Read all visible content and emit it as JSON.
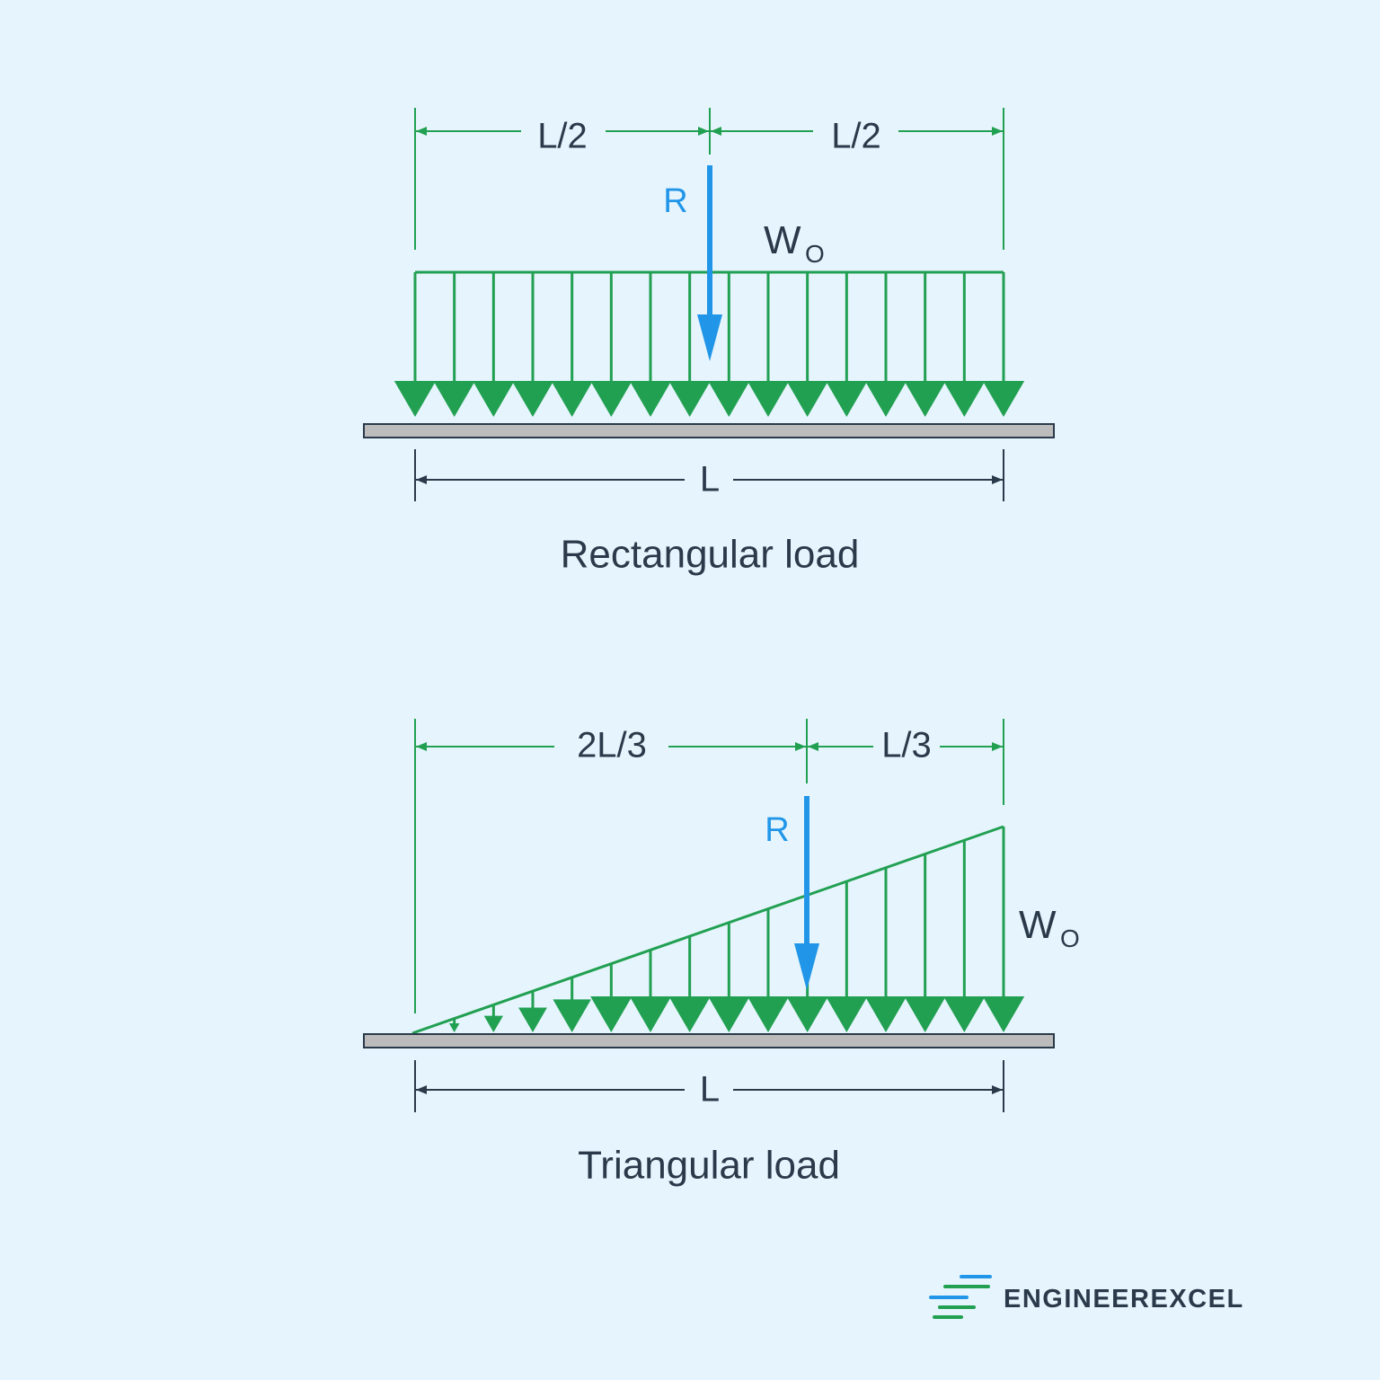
{
  "colors": {
    "background": "#e6f5fd",
    "load": "#22a052",
    "resultant": "#2196e8",
    "beam_fill": "#bcbcbc",
    "beam_stroke": "#2b3a4a",
    "dimension": "#2b3a4a",
    "text": "#2b3a4a",
    "logo_green": "#22a052",
    "logo_blue": "#2196e8"
  },
  "rectangular": {
    "dim_left": "L/2",
    "dim_right": "L/2",
    "resultant_label": "R",
    "load_label": "W",
    "load_subscript": "O",
    "span_label": "L",
    "caption": "Rectangular load"
  },
  "triangular": {
    "dim_left": "2L/3",
    "dim_right": "L/3",
    "resultant_label": "R",
    "load_label": "W",
    "load_subscript": "O",
    "span_label": "L",
    "caption": "Triangular load"
  },
  "logo": {
    "text": "ENGINEEREXCEL",
    "icon": "speed-lines-icon"
  }
}
